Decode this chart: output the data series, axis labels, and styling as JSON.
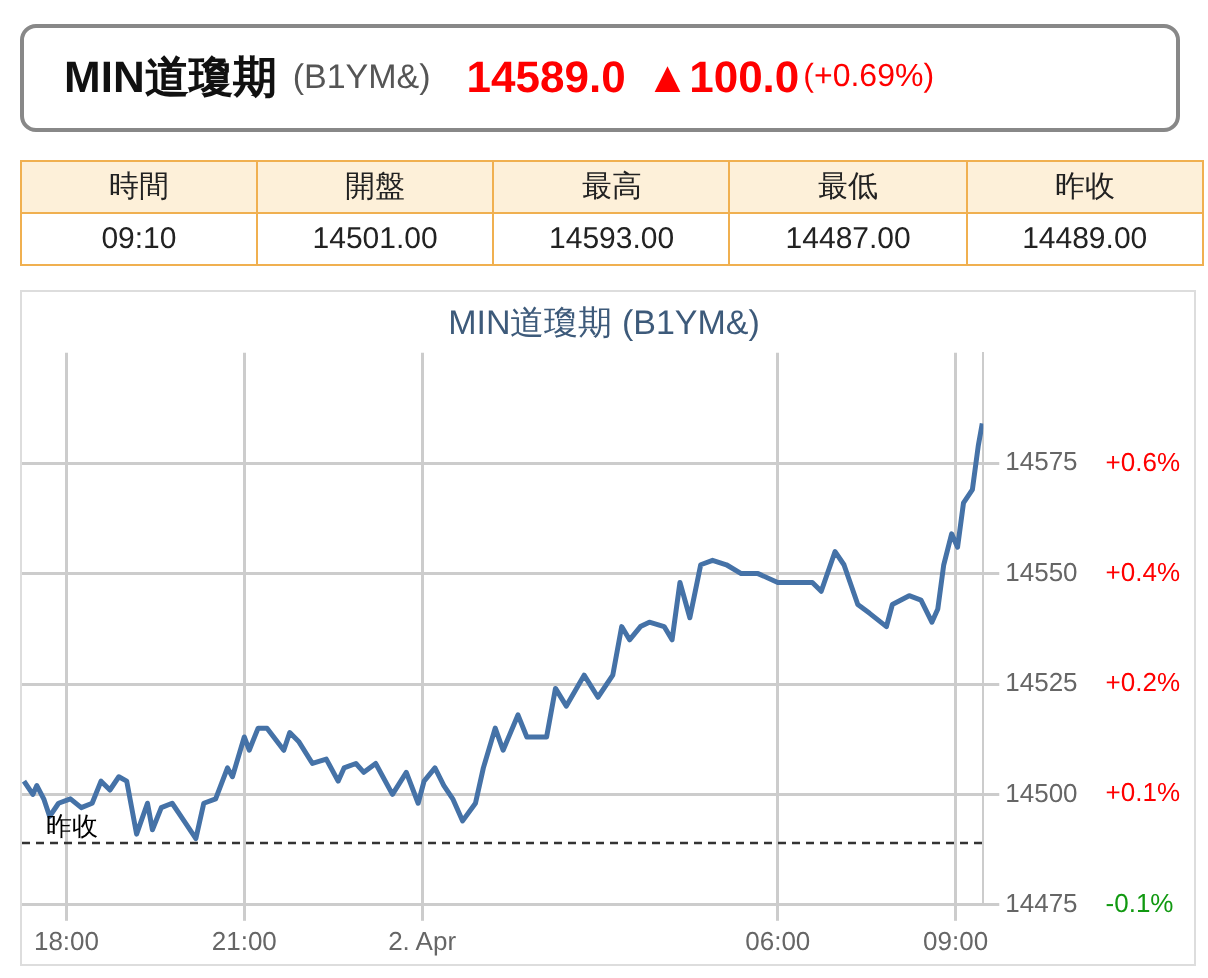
{
  "chart_data": [
    {
      "type": "other",
      "title": "MIN道瓊期",
      "subtitle": "(B1YM&)",
      "annotations": [
        "14589.0",
        "▲100.0",
        "(+0.69%)"
      ]
    },
    {
      "type": "other",
      "categories": [
        "時間",
        "開盤",
        "最高",
        "最低",
        "昨收"
      ],
      "value_labels": [
        "09:10",
        "14501.00",
        "14593.00",
        "14487.00",
        "14489.00"
      ]
    },
    {
      "type": "line",
      "title": "MIN道瓊期 (B1YM&)",
      "series": [
        {
          "color": "#4572a7",
          "x": [
            "--04-01T17:17",
            "--04-01T17:26",
            "--04-01T17:30",
            "--04-01T17:37",
            "--04-01T17:43",
            "--04-01T17:52",
            "--04-01T18:04",
            "--04-01T18:15",
            "--04-01T18:26",
            "--04-01T18:35",
            "--04-01T18:44",
            "--04-01T18:53",
            "--04-01T19:01",
            "--04-01T19:11",
            "--04-01T19:22",
            "--04-01T19:27",
            "--04-01T19:36",
            "--04-01T19:47",
            "--04-01T19:59",
            "--04-01T20:11",
            "--04-01T20:19",
            "--04-01T20:31",
            "--04-01T20:43",
            "--04-01T20:48",
            "--04-01T21:00",
            "--04-01T21:05",
            "--04-01T21:14",
            "--04-01T21:23",
            "--04-01T21:40",
            "--04-01T21:46",
            "--04-01T21:55",
            "--04-01T22:09",
            "--04-01T22:23",
            "--04-01T22:35",
            "--04-01T22:41",
            "--04-01T22:53",
            "--04-01T23:01",
            "--04-01T23:13",
            "--04-01T23:30",
            "--04-01T23:44",
            "--04-01T23:56",
            "--04-02T00:02",
            "--04-02T00:13",
            "--04-02T00:22",
            "--04-02T00:31",
            "--04-02T00:41",
            "--04-02T00:54",
            "--04-02T01:02",
            "--04-02T01:14",
            "--04-02T01:22",
            "--04-02T01:37",
            "--04-02T01:46",
            "--04-02T02:06",
            "--04-02T02:15",
            "--04-02T02:26",
            "--04-02T02:44",
            "--04-02T02:58",
            "--04-02T03:13",
            "--04-02T03:22",
            "--04-02T03:30",
            "--04-02T03:41",
            "--04-02T03:50",
            "--04-02T04:05",
            "--04-02T04:13",
            "--04-02T04:21",
            "--04-02T04:31",
            "--04-02T04:42",
            "--04-02T04:54",
            "--04-02T05:08",
            "--04-02T05:23",
            "--04-02T05:40",
            "--04-02T06:00",
            "--04-02T06:17",
            "--04-02T06:35",
            "--04-02T06:44",
            "--04-02T06:58",
            "--04-02T07:07",
            "--04-02T07:21",
            "--04-02T07:33",
            "--04-02T07:50",
            "--04-02T07:56",
            "--04-02T08:13",
            "--04-02T08:25",
            "--04-02T08:36",
            "--04-02T08:42",
            "--04-02T08:48",
            "--04-02T08:56",
            "--04-02T09:02",
            "--04-02T09:08",
            "--04-02T09:17",
            "--04-02T09:23",
            "--04-02T09:27"
          ],
          "values": [
            14503,
            14500,
            14502,
            14499,
            14495,
            14498,
            14499,
            14497,
            14498,
            14503,
            14501,
            14504,
            14503,
            14491,
            14498,
            14492,
            14497,
            14498,
            14494,
            14490,
            14498,
            14499,
            14506,
            14504,
            14513,
            14510,
            14515,
            14515,
            14510,
            14514,
            14512,
            14507,
            14508,
            14503,
            14506,
            14507,
            14505,
            14507,
            14500,
            14505,
            14498,
            14503,
            14506,
            14502,
            14499,
            14494,
            14498,
            14506,
            14515,
            14510,
            14518,
            14513,
            14513,
            14524,
            14520,
            14527,
            14522,
            14527,
            14538,
            14535,
            14538,
            14539,
            14538,
            14535,
            14548,
            14540,
            14552,
            14553,
            14552,
            14550,
            14550,
            14548,
            14548,
            14548,
            14546,
            14555,
            14552,
            14543,
            14541,
            14538,
            14543,
            14545,
            14544,
            14539,
            14542,
            14552,
            14559,
            14556,
            14566,
            14569,
            14579,
            14584
          ]
        }
      ],
      "xlim": [
        "--04-01T17:15",
        "--04-02T09:28"
      ],
      "xticks": [
        {
          "value": "--04-01T18:00",
          "label": "18:00"
        },
        {
          "value": "--04-01T21:00",
          "label": "21:00"
        },
        {
          "value": "--04-02T00:00",
          "label": "2. Apr"
        },
        {
          "value": "--04-02T06:00",
          "label": "06:00"
        },
        {
          "value": "--04-02T09:00",
          "label": "09:00"
        }
      ],
      "ylim": [
        14475,
        14600
      ],
      "yticks": [
        14475,
        14500,
        14525,
        14550,
        14575
      ],
      "y2lim": [
        -0.097,
        0.766
      ],
      "y2ticks": [
        {
          "value": -0.097,
          "label": "-0.1%"
        },
        {
          "value": 0.076,
          "label": "+0.1%"
        },
        {
          "value": 0.249,
          "label": "+0.2%"
        },
        {
          "value": 0.421,
          "label": "+0.4%"
        },
        {
          "value": 0.593,
          "label": "+0.6%"
        }
      ],
      "ref_lines": [
        {
          "axis": "y",
          "value": 14489,
          "label": "昨收",
          "color": "#333333",
          "line_style": "dashed"
        }
      ],
      "grid": true,
      "legend": false,
      "marker": "none",
      "line_style": "solid"
    }
  ]
}
